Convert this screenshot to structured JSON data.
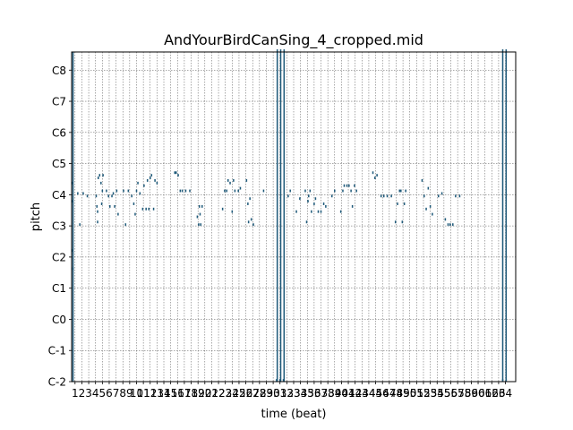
{
  "chart_data": {
    "type": "scatter",
    "title": "AndYourBirdCanSing_4_cropped.mid",
    "xlabel": "time (beat)",
    "ylabel": "pitch",
    "xlim": [
      0,
      65
    ],
    "ylim": [
      0,
      127
    ],
    "grid": true,
    "x_ticks": [
      1,
      2,
      3,
      4,
      5,
      6,
      7,
      8,
      9,
      10,
      11,
      12,
      13,
      14,
      15,
      16,
      17,
      18,
      19,
      20,
      21,
      22,
      23,
      24,
      25,
      26,
      27,
      28,
      29,
      30,
      31,
      32,
      33,
      34,
      35,
      36,
      37,
      38,
      39,
      40,
      41,
      42,
      43,
      44,
      45,
      46,
      47,
      48,
      49,
      50,
      51,
      52,
      53,
      54,
      55,
      56,
      57,
      58,
      59,
      60,
      61,
      62,
      63,
      64
    ],
    "y_ticks": [
      {
        "value": 0,
        "label": "C-2"
      },
      {
        "value": 12,
        "label": "C-1"
      },
      {
        "value": 24,
        "label": "C0"
      },
      {
        "value": 36,
        "label": "C1"
      },
      {
        "value": 48,
        "label": "C2"
      },
      {
        "value": 60,
        "label": "C3"
      },
      {
        "value": 72,
        "label": "C4"
      },
      {
        "value": 84,
        "label": "C5"
      },
      {
        "value": 96,
        "label": "C6"
      },
      {
        "value": 108,
        "label": "C7"
      },
      {
        "value": 120,
        "label": "C8"
      }
    ],
    "note_color": "#1f5a7a",
    "notes": [
      [
        0.0,
        0.2,
        69
      ],
      [
        0.0,
        0.2,
        76
      ],
      [
        0.0,
        0.2,
        50
      ],
      [
        0.1,
        0.3,
        43
      ],
      [
        0.8,
        1.0,
        72
      ],
      [
        1.1,
        1.3,
        60
      ],
      [
        1.6,
        1.8,
        72
      ],
      [
        2.2,
        2.4,
        71
      ],
      [
        3.5,
        3.7,
        71
      ],
      [
        3.6,
        3.8,
        67
      ],
      [
        3.7,
        3.9,
        65
      ],
      [
        3.7,
        3.9,
        61
      ],
      [
        3.8,
        4.0,
        78
      ],
      [
        4.0,
        4.2,
        79
      ],
      [
        4.2,
        4.4,
        76
      ],
      [
        4.3,
        4.5,
        68
      ],
      [
        4.4,
        4.6,
        73
      ],
      [
        4.5,
        4.7,
        79
      ],
      [
        5.0,
        5.2,
        73
      ],
      [
        5.3,
        5.5,
        71
      ],
      [
        5.5,
        5.7,
        67
      ],
      [
        5.8,
        6.0,
        71
      ],
      [
        6.0,
        6.2,
        72
      ],
      [
        6.2,
        6.4,
        67
      ],
      [
        6.5,
        6.7,
        73
      ],
      [
        6.7,
        6.9,
        64
      ],
      [
        7.5,
        7.7,
        73
      ],
      [
        7.8,
        8.0,
        60
      ],
      [
        8.2,
        8.4,
        73
      ],
      [
        8.7,
        8.9,
        71
      ],
      [
        9.0,
        9.2,
        68
      ],
      [
        9.2,
        9.4,
        64
      ],
      [
        9.4,
        9.6,
        73
      ],
      [
        9.6,
        9.8,
        76
      ],
      [
        9.9,
        10.1,
        72
      ],
      [
        10.3,
        10.5,
        66
      ],
      [
        10.5,
        10.7,
        75
      ],
      [
        10.8,
        11.0,
        66
      ],
      [
        11.0,
        11.2,
        77
      ],
      [
        11.2,
        11.4,
        66
      ],
      [
        11.4,
        11.6,
        78
      ],
      [
        11.6,
        11.8,
        79
      ],
      [
        11.9,
        12.1,
        66
      ],
      [
        12.1,
        12.3,
        77
      ],
      [
        12.4,
        12.6,
        76
      ],
      [
        15.0,
        15.2,
        80
      ],
      [
        15.2,
        15.4,
        80
      ],
      [
        15.5,
        15.7,
        79
      ],
      [
        15.8,
        16.0,
        73
      ],
      [
        16.1,
        16.3,
        73
      ],
      [
        16.6,
        16.8,
        73
      ],
      [
        17.2,
        17.4,
        73
      ],
      [
        18.3,
        18.5,
        63
      ],
      [
        18.5,
        18.7,
        60
      ],
      [
        18.6,
        18.8,
        67
      ],
      [
        18.7,
        18.9,
        64
      ],
      [
        18.8,
        19.0,
        60
      ],
      [
        19.0,
        19.2,
        67
      ],
      [
        22.0,
        22.2,
        66
      ],
      [
        22.3,
        22.5,
        73
      ],
      [
        22.6,
        22.8,
        73
      ],
      [
        22.8,
        23.0,
        77
      ],
      [
        23.1,
        23.3,
        76
      ],
      [
        23.4,
        23.6,
        65
      ],
      [
        23.6,
        23.8,
        77
      ],
      [
        23.8,
        24.0,
        73
      ],
      [
        24.3,
        24.5,
        73
      ],
      [
        24.6,
        24.8,
        74
      ],
      [
        25.5,
        25.7,
        77
      ],
      [
        25.7,
        25.9,
        68
      ],
      [
        25.8,
        26.0,
        61
      ],
      [
        26.0,
        26.2,
        70
      ],
      [
        26.2,
        26.4,
        62
      ],
      [
        26.5,
        26.7,
        60
      ],
      [
        28.0,
        28.2,
        73
      ],
      [
        29.9,
        30.1,
        0
      ],
      [
        30.0,
        30.2,
        127
      ],
      [
        30.4,
        30.6,
        0
      ],
      [
        30.5,
        30.7,
        127
      ],
      [
        30.9,
        31.1,
        0
      ],
      [
        31.0,
        31.2,
        127
      ],
      [
        31.6,
        31.8,
        71
      ],
      [
        31.9,
        32.1,
        73
      ],
      [
        32.8,
        33.0,
        65
      ],
      [
        33.3,
        33.5,
        70
      ],
      [
        34.1,
        34.3,
        73
      ],
      [
        34.3,
        34.5,
        61
      ],
      [
        34.5,
        34.7,
        69
      ],
      [
        34.6,
        34.8,
        71
      ],
      [
        34.8,
        35.0,
        73
      ],
      [
        35.0,
        35.2,
        65
      ],
      [
        35.4,
        35.6,
        68
      ],
      [
        35.6,
        35.8,
        70
      ],
      [
        36.0,
        36.2,
        65
      ],
      [
        36.4,
        36.6,
        65
      ],
      [
        36.8,
        37.0,
        68
      ],
      [
        37.1,
        37.3,
        67
      ],
      [
        38.0,
        38.2,
        71
      ],
      [
        38.4,
        38.6,
        73
      ],
      [
        39.3,
        39.5,
        65
      ],
      [
        39.6,
        39.8,
        73
      ],
      [
        39.8,
        40.0,
        75
      ],
      [
        40.2,
        40.4,
        75
      ],
      [
        40.5,
        40.7,
        75
      ],
      [
        40.8,
        41.0,
        73
      ],
      [
        41.0,
        41.2,
        67
      ],
      [
        41.3,
        41.5,
        75
      ],
      [
        41.6,
        41.8,
        73
      ],
      [
        44.0,
        44.2,
        80
      ],
      [
        44.3,
        44.5,
        78
      ],
      [
        44.6,
        44.8,
        79
      ],
      [
        45.2,
        45.4,
        71
      ],
      [
        45.6,
        45.8,
        71
      ],
      [
        46.1,
        46.3,
        71
      ],
      [
        46.7,
        46.9,
        71
      ],
      [
        47.3,
        47.5,
        61
      ],
      [
        47.6,
        47.8,
        68
      ],
      [
        47.9,
        48.1,
        73
      ],
      [
        48.1,
        48.3,
        73
      ],
      [
        48.3,
        48.5,
        61
      ],
      [
        48.6,
        48.8,
        68
      ],
      [
        48.8,
        49.0,
        73
      ],
      [
        51.2,
        51.4,
        77
      ],
      [
        51.5,
        51.7,
        71
      ],
      [
        51.8,
        52.0,
        66
      ],
      [
        52.1,
        52.3,
        74
      ],
      [
        52.4,
        52.6,
        67
      ],
      [
        52.7,
        52.9,
        64
      ],
      [
        53.6,
        53.8,
        71
      ],
      [
        54.1,
        54.3,
        72
      ],
      [
        54.6,
        54.8,
        62
      ],
      [
        55.0,
        55.2,
        60
      ],
      [
        55.3,
        55.5,
        60
      ],
      [
        55.7,
        55.9,
        60
      ],
      [
        56.1,
        56.3,
        71
      ],
      [
        56.7,
        56.9,
        71
      ],
      [
        63.0,
        63.2,
        0
      ],
      [
        63.0,
        63.2,
        127
      ],
      [
        63.5,
        63.7,
        0
      ],
      [
        63.5,
        63.7,
        127
      ]
    ]
  }
}
